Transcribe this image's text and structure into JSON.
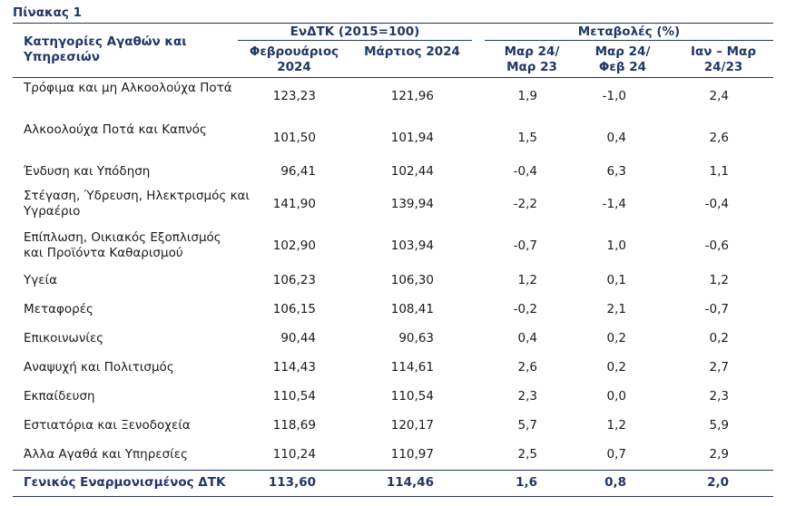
{
  "table": {
    "caption": "Πίνακας 1",
    "headers": {
      "category": "Κατηγορίες Αγαθών και Υπηρεσιών",
      "group_index": "ΕνΔΤΚ (2015=100)",
      "group_change": "Μεταβολές (%)",
      "col_feb": "Φεβρουάριος 2024",
      "col_mar": "Μάρτιος 2024",
      "col_ch1": "Μαρ 24/ Μαρ 23",
      "col_ch2": "Μαρ 24/ Φεβ 24",
      "col_ch3": "Ιαν – Μαρ 24/23"
    },
    "rows": [
      {
        "category": "Τρόφιμα και μη Αλκοολούχα Ποτά",
        "feb": "123,23",
        "mar": "121,96",
        "ch1": "1,9",
        "ch2": "-1,0",
        "ch3": "2,4"
      },
      {
        "category": "Αλκοολούχα Ποτά και Καπνός",
        "feb": "101,50",
        "mar": "101,94",
        "ch1": "1,5",
        "ch2": "0,4",
        "ch3": "2,6"
      },
      {
        "category": "Ένδυση και Υπόδηση",
        "feb": "96,41",
        "mar": "102,44",
        "ch1": "-0,4",
        "ch2": "6,3",
        "ch3": "1,1"
      },
      {
        "category": "Στέγαση, Ύδρευση, Ηλεκτρισμός και Υγραέριο",
        "feb": "141,90",
        "mar": "139,94",
        "ch1": "-2,2",
        "ch2": "-1,4",
        "ch3": "-0,4"
      },
      {
        "category": "Επίπλωση, Οικιακός Εξοπλισμός και Προϊόντα Καθαρισμού",
        "feb": "102,90",
        "mar": "103,94",
        "ch1": "-0,7",
        "ch2": "1,0",
        "ch3": "-0,6"
      },
      {
        "category": "Υγεία",
        "feb": "106,23",
        "mar": "106,30",
        "ch1": "1,2",
        "ch2": "0,1",
        "ch3": "1,2"
      },
      {
        "category": "Μεταφορές",
        "feb": "106,15",
        "mar": "108,41",
        "ch1": "-0,2",
        "ch2": "2,1",
        "ch3": "-0,7"
      },
      {
        "category": "Επικοινωνίες",
        "feb": "90,44",
        "mar": "90,63",
        "ch1": "0,4",
        "ch2": "0,2",
        "ch3": "0,2"
      },
      {
        "category": "Αναψυχή και Πολιτισμός",
        "feb": "114,43",
        "mar": "114,61",
        "ch1": "2,6",
        "ch2": "0,2",
        "ch3": "2,7"
      },
      {
        "category": "Εκπαίδευση",
        "feb": "110,54",
        "mar": "110,54",
        "ch1": "2,3",
        "ch2": "0,0",
        "ch3": "2,3"
      },
      {
        "category": "Εστιατόρια και Ξενοδοχεία",
        "feb": "118,69",
        "mar": "120,17",
        "ch1": "5,7",
        "ch2": "1,2",
        "ch3": "5,9"
      },
      {
        "category": "Άλλα Αγαθά και Υπηρεσίες",
        "feb": "110,24",
        "mar": "110,97",
        "ch1": "2,5",
        "ch2": "0,7",
        "ch3": "2,9"
      }
    ],
    "total": {
      "category": "Γενικός Εναρμονισμένος ΔΤΚ",
      "feb": "113,60",
      "mar": "114,46",
      "ch1": "1,6",
      "ch2": "0,8",
      "ch3": "2,0"
    }
  }
}
